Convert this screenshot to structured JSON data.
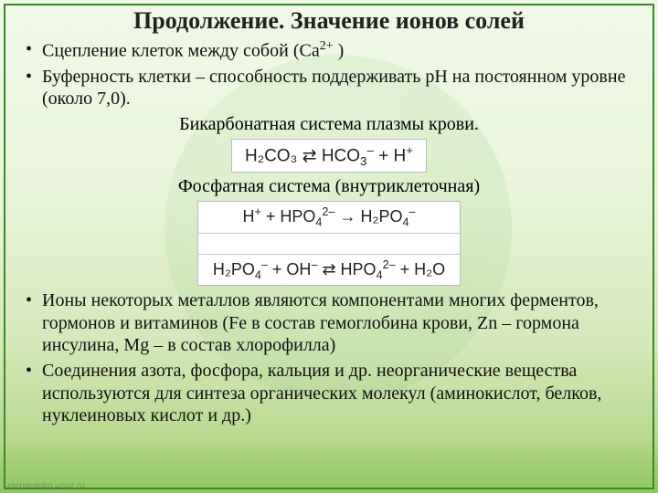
{
  "title": "Продолжение. Значение ионов солей",
  "bullets": {
    "b1_pre": "Сцепление клеток между собой (Ca",
    "b1_sup": "2+",
    "b1_post": " )",
    "b2": "Буферность клетки – способность поддерживать pH на постоянном уровне (около 7,0).",
    "b3": "Ионы некоторых металлов являются компонентами многих ферментов, гормонов и витаминов (Fe в состав гемоглобина крови, Zn – гормона инсулина,  Mg – в состав хлорофилла)",
    "b4": "Соединения азота, фосфора, кальция и др. неорганические вещества используются для синтеза органических молекул (аминокислот, белков, нуклеиновых кислот и др.)"
  },
  "center": {
    "bicarb": "Бикарбонатная система плазмы крови.",
    "phos": "Фосфатная система (внутриклеточная)"
  },
  "equations": {
    "eq1_lhs": "H₂CO₃",
    "eq1_arrow": " ⇄ ",
    "eq1_r1": "HCO",
    "eq1_r1_sub": "3",
    "eq1_r1_sup": "–",
    "eq1_plus": "  +  H",
    "eq1_hsup": "+",
    "eq2_h": "H",
    "eq2_hsup": "+",
    "eq2_plus1": " + HPO",
    "eq2_sub4": "4",
    "eq2_sup2m": "2–",
    "eq2_arrow": " → ",
    "eq2_r": "H₂PO",
    "eq2_rsub": "4",
    "eq2_rsup": "–",
    "eq3_l": "H₂PO",
    "eq3_lsub": "4",
    "eq3_lsup": "–",
    "eq3_plus": " + OH",
    "eq3_ohsup": "–",
    "eq3_arrow": " ⇄ ",
    "eq3_r1": "HPO",
    "eq3_r1sub": "4",
    "eq3_r1sup": "2–",
    "eq3_end": " + H₂O"
  },
  "watermark": "elenaranko.ucoz.ru",
  "colors": {
    "frame": "#3a8a2a",
    "eq_bg": "#ffffff",
    "eq_border": "#bbbbbb",
    "text": "#111111"
  }
}
